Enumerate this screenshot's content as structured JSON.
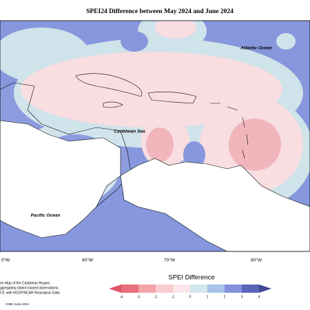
{
  "title": "SPEI24 Difference between May 2024 and June 2024",
  "map_labels": {
    "atlantic": "Atlantic Ocean",
    "caribbean": "Caribbean Sea",
    "pacific": "Pacific Ocean"
  },
  "longitudes": [
    "0°W",
    "80°W",
    "70°W",
    "60°W"
  ],
  "legend": {
    "title": "SPEI Difference",
    "ticks": [
      -4,
      -3,
      -2,
      -1,
      0,
      1,
      2,
      3,
      4
    ],
    "colors": [
      "#e8707a",
      "#f2a4aa",
      "#f7cdd2",
      "#fbe5e8",
      "#d3e6ee",
      "#a9c2e8",
      "#8092dc",
      "#5a66b8"
    ],
    "end_colors": [
      "#e05566",
      "#3f4790"
    ]
  },
  "notes": [
    "on Map of the Caribbean Region.",
    "ggregating station based observations.",
    "CF, with NCEP/NCAR Reanalysis Data."
  ],
  "credit": "CIMH June-2024"
}
